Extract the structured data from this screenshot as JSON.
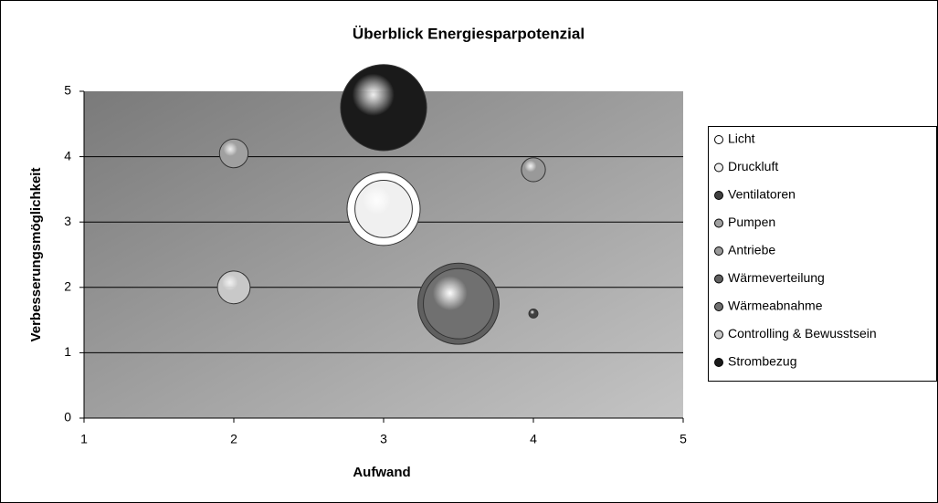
{
  "chart_data": {
    "type": "bubble",
    "title": "Überblick Energiesparpotenzial",
    "x_label": "Aufwand",
    "y_label": "Verbesserungsmöglichkeit",
    "xlim": [
      1,
      5
    ],
    "xticks": [
      1,
      2,
      3,
      4,
      5
    ],
    "ylim": [
      0,
      5
    ],
    "yticks": [
      0,
      1,
      2,
      3,
      4,
      5
    ],
    "grid": true,
    "legend": "right",
    "series": [
      {
        "name": "Licht",
        "color": "#ffffff",
        "x": [
          3
        ],
        "values": [
          3.2
        ],
        "sizes": [
          6.5
        ]
      },
      {
        "name": "Druckluft",
        "color": "#f0f0f0",
        "x": [
          3
        ],
        "values": [
          3.2
        ],
        "sizes": [
          4
        ]
      },
      {
        "name": "Ventilatoren",
        "color": "#404040",
        "x": [
          4
        ],
        "values": [
          1.6
        ],
        "sizes": [
          0.1
        ]
      },
      {
        "name": "Pumpen",
        "color": "#a0a0a0",
        "x": [
          2
        ],
        "values": [
          4.05
        ],
        "sizes": [
          1
        ]
      },
      {
        "name": "Antriebe",
        "color": "#999999",
        "x": [
          4
        ],
        "values": [
          3.8
        ],
        "sizes": [
          0.7
        ]
      },
      {
        "name": "Wärmeverteilung",
        "color": "#606060",
        "x": [
          3.5
        ],
        "values": [
          1.75
        ],
        "sizes": [
          8
        ]
      },
      {
        "name": "Wärmeabnahme",
        "color": "#707070",
        "x": [
          3.5
        ],
        "values": [
          1.75
        ],
        "sizes": [
          6
        ]
      },
      {
        "name": "Controlling & Bewusstsein",
        "color": "#c8c8c8",
        "x": [
          2
        ],
        "values": [
          2
        ],
        "sizes": [
          1.3
        ]
      },
      {
        "name": "Strombezug",
        "color": "#1a1a1a",
        "x": [
          3
        ],
        "values": [
          4.75
        ],
        "sizes": [
          9
        ]
      }
    ]
  }
}
